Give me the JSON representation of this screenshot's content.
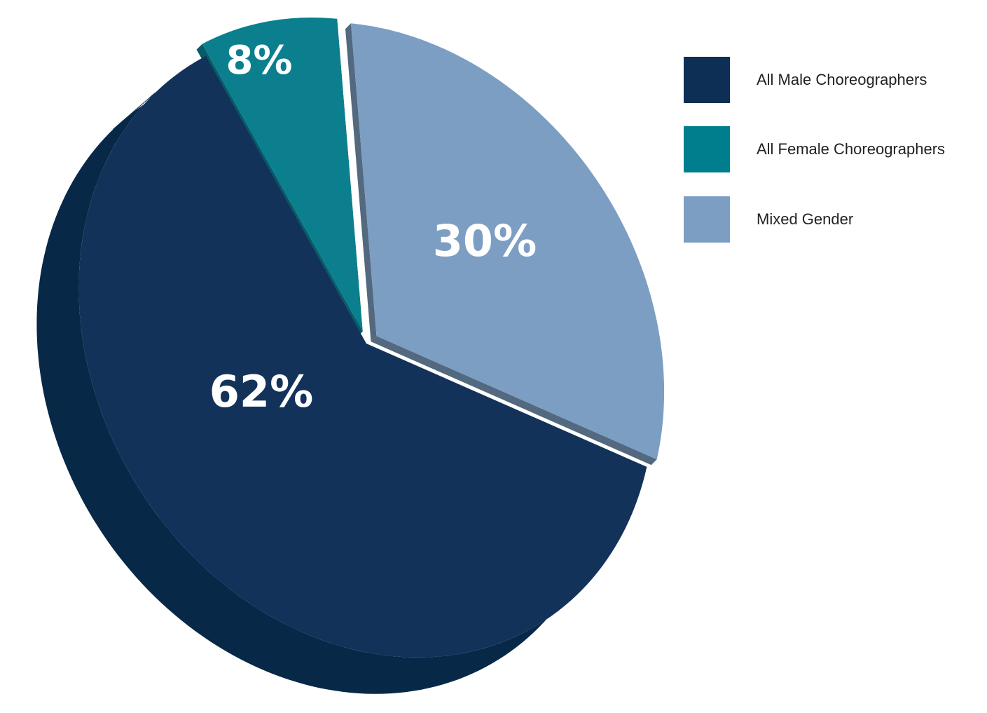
{
  "chart_data": {
    "type": "pie",
    "style": "3d-tilted",
    "categories": [
      "All Male Choreographers",
      "All Female Choreographers",
      "Mixed Gender"
    ],
    "values": [
      62,
      8,
      30
    ],
    "unit": "%",
    "data_labels": [
      "62%",
      "8%",
      "30%"
    ],
    "colors": [
      "#13325a",
      "#0b7f8e",
      "#7d9ec3"
    ],
    "side_colors": [
      "#072847",
      "#075b68",
      "#52697f"
    ],
    "legend": {
      "placement": "right",
      "entries": [
        {
          "label": "All Male Choreographers",
          "color": "#0d2f55"
        },
        {
          "label": "All Female Choreographers",
          "color": "#017e8d"
        },
        {
          "label": "Mixed Gender",
          "color": "#7d9ec3"
        }
      ]
    }
  }
}
